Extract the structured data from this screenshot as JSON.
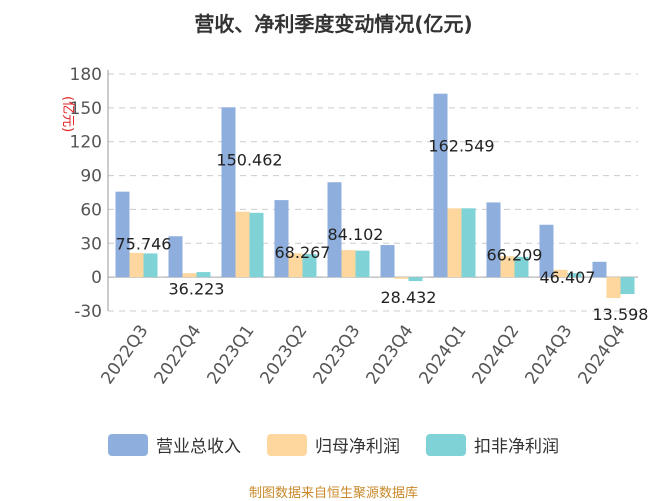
{
  "chart_data": {
    "type": "bar",
    "title": "营收、净利季度变动情况(亿元)",
    "ylabel": "(亿元)",
    "ylim": [
      -30,
      180
    ],
    "yticks": [
      -30,
      0,
      30,
      60,
      90,
      120,
      150,
      180
    ],
    "grid": true,
    "legend_position": "bottom",
    "categories": [
      "2022Q3",
      "2022Q4",
      "2023Q1",
      "2023Q2",
      "2023Q3",
      "2023Q4",
      "2024Q1",
      "2024Q2",
      "2024Q3",
      "2024Q4"
    ],
    "series": [
      {
        "name": "营业总收入",
        "color": "#8eaedd",
        "values": [
          75.746,
          36.223,
          150.462,
          68.267,
          84.102,
          28.432,
          162.549,
          66.209,
          46.407,
          13.598
        ]
      },
      {
        "name": "归母净利润",
        "color": "#fdd79e",
        "values": [
          21.5,
          3.5,
          58.0,
          21.0,
          24.0,
          -1.5,
          61.0,
          18.5,
          6.5,
          -18.5
        ]
      },
      {
        "name": "扣非净利润",
        "color": "#7fd3d6",
        "values": [
          21.0,
          4.5,
          57.0,
          20.5,
          23.5,
          -3.5,
          61.0,
          18.0,
          3.5,
          -15.0
        ]
      }
    ],
    "data_labels": [
      "75.746",
      "36.223",
      "150.462",
      "68.267",
      "84.102",
      "28.432",
      "162.549",
      "66.209",
      "46.407",
      "13.598"
    ]
  },
  "source": "制图数据来自恒生聚源数据库"
}
